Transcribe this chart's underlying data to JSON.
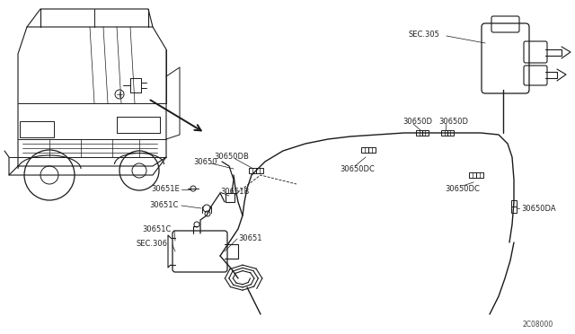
{
  "bg_color": "#ffffff",
  "line_color": "#1a1a1a",
  "label_color": "#222222",
  "diagram_id": "2C08000",
  "labels": {
    "SEC305": "SEC.305",
    "30650D_1": "30650D",
    "30650D_2": "30650D",
    "30650DB": "30650DB",
    "30650DC_1": "30650DC",
    "30650DC_2": "30650DC",
    "30650DA": "30650DA",
    "30650": "30650",
    "30651B": "30651B",
    "30651E": "30651E",
    "30651C_1": "30651C",
    "30651C_2": "30651C",
    "SEC306": "SEC.306",
    "30651": "30651"
  },
  "font_size": 6.0
}
